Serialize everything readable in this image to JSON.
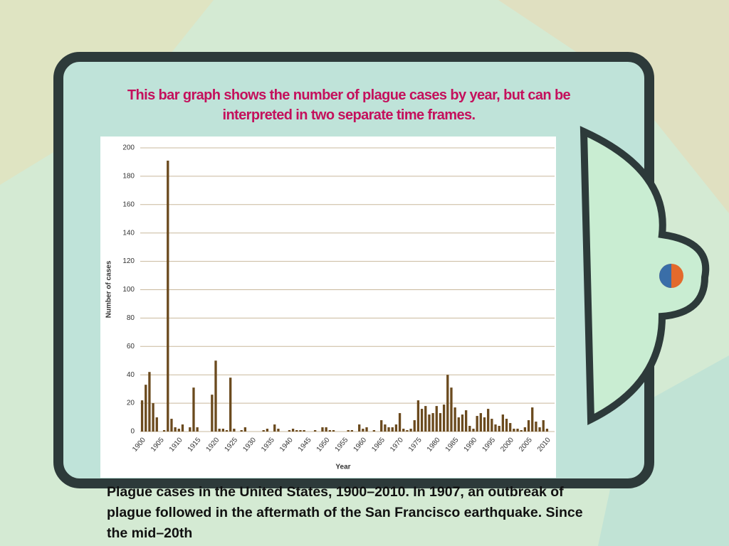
{
  "slide": {
    "heading": "This bar graph shows the number of plague cases by year, but can be interpreted in two separate time frames.",
    "caption": "Plague cases in the United States, 1900–2010. In 1907, an outbreak of plague followed in the aftermath of the San Francisco earthquake.  Since the mid–20th"
  },
  "chart_data": {
    "type": "bar",
    "x_label": "Year",
    "y_label": "Number of cases",
    "color": "#6b4a1e",
    "grid": true,
    "ylim": [
      0,
      200
    ],
    "yticks": [
      0,
      20,
      40,
      60,
      80,
      100,
      120,
      140,
      160,
      180,
      200
    ],
    "categories": [
      "1900",
      null,
      null,
      null,
      null,
      "1905",
      null,
      null,
      null,
      null,
      "1910",
      null,
      null,
      null,
      null,
      "1915",
      null,
      null,
      null,
      null,
      "1920",
      null,
      null,
      null,
      null,
      "1925",
      null,
      null,
      null,
      null,
      "1930",
      null,
      null,
      null,
      null,
      "1935",
      null,
      null,
      null,
      null,
      "1940",
      null,
      null,
      null,
      null,
      "1945",
      null,
      null,
      null,
      null,
      "1950",
      null,
      null,
      null,
      null,
      "1955",
      null,
      null,
      null,
      null,
      "1960",
      null,
      null,
      null,
      null,
      "1965",
      null,
      null,
      null,
      null,
      "1970",
      null,
      null,
      null,
      null,
      "1975",
      null,
      null,
      null,
      null,
      "1980",
      null,
      null,
      null,
      null,
      "1985",
      null,
      null,
      null,
      null,
      "1990",
      null,
      null,
      null,
      null,
      "1995",
      null,
      null,
      null,
      null,
      "2000",
      null,
      null,
      null,
      null,
      "2005",
      null,
      null,
      null,
      null,
      "2010"
    ],
    "values": [
      22,
      33,
      42,
      20,
      10,
      0,
      1,
      191,
      9,
      3,
      2,
      5,
      0,
      3,
      31,
      3,
      0,
      0,
      0,
      26,
      50,
      2,
      2,
      1,
      38,
      2,
      0,
      1,
      3,
      0,
      0,
      0,
      0,
      1,
      2,
      0,
      5,
      2,
      0,
      0,
      1,
      2,
      1,
      1,
      1,
      0,
      0,
      1,
      0,
      3,
      3,
      1,
      1,
      0,
      0,
      0,
      1,
      1,
      0,
      5,
      2,
      3,
      0,
      1,
      0,
      8,
      5,
      3,
      3,
      5,
      13,
      2,
      1,
      2,
      8,
      22,
      16,
      18,
      12,
      13,
      18,
      13,
      19,
      40,
      31,
      17,
      10,
      12,
      15,
      4,
      2,
      11,
      13,
      10,
      16,
      9,
      5,
      4,
      12,
      9,
      6,
      2,
      2,
      1,
      3,
      8,
      17,
      7,
      3,
      8,
      2
    ]
  }
}
